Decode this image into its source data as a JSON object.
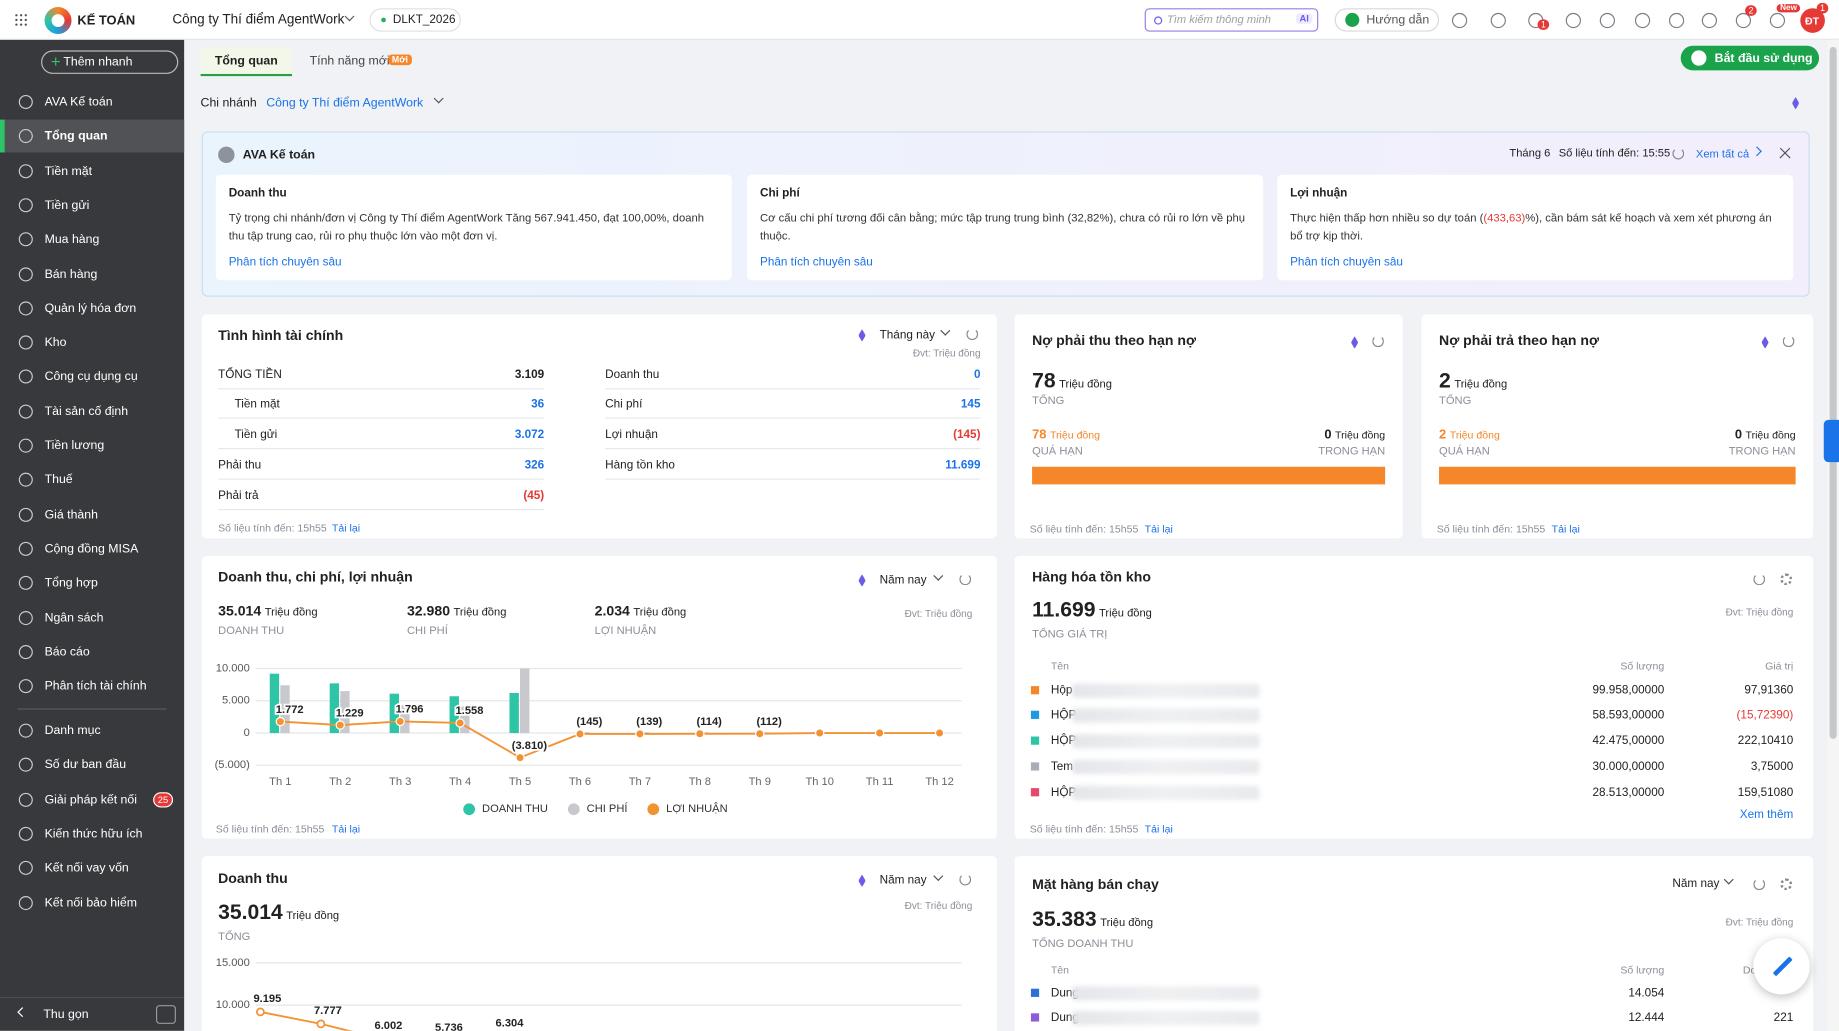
{
  "topbar": {
    "app_name": "KẾ TOÁN",
    "company": "Công ty Thí điểm AgentWork",
    "dataset": "DLKT_2026",
    "search_placeholder": "Tìm kiếm thông minh",
    "search_tag": "AI",
    "guide": "Hướng dẫn",
    "chat_badge": "1",
    "gift_badge": "2",
    "mail_badge": "New",
    "avatar": "ĐT",
    "avatar_badge": "1"
  },
  "sidebar": {
    "quick_add": "Thêm nhanh",
    "menu": [
      [
        {
          "label": "AVA Kế toán"
        },
        {
          "label": "Tổng quan",
          "active": true
        },
        {
          "label": "Tiền mặt"
        },
        {
          "label": "Tiền gửi"
        },
        {
          "label": "Mua hàng"
        },
        {
          "label": "Bán hàng"
        },
        {
          "label": "Quản lý hóa đơn"
        },
        {
          "label": "Kho"
        },
        {
          "label": "Công cụ dụng cụ"
        },
        {
          "label": "Tài sản cố định"
        },
        {
          "label": "Tiền lương"
        },
        {
          "label": "Thuế"
        },
        {
          "label": "Giá thành"
        },
        {
          "label": "Cộng đồng MISA"
        },
        {
          "label": "Tổng hợp"
        },
        {
          "label": "Ngân sách"
        },
        {
          "label": "Báo cáo"
        },
        {
          "label": "Phân tích tài chính"
        }
      ],
      [
        {
          "label": "Danh mục"
        },
        {
          "label": "Số dư ban đầu"
        },
        {
          "label": "Giải pháp kết nối",
          "badge": "25"
        },
        {
          "label": "Kiến thức hữu ích"
        },
        {
          "label": "Kết nối vay vốn"
        },
        {
          "label": "Kết nối bảo hiểm"
        }
      ]
    ],
    "collapse": "Thu gọn"
  },
  "tabs": [
    {
      "label": "Tổng quan",
      "active": true
    },
    {
      "label": "Tính năng mới",
      "tag": "Mới"
    }
  ],
  "start_button": "Bắt đầu sử dụng",
  "branch": {
    "label": "Chi nhánh",
    "value": "Công ty Thí điểm AgentWork"
  },
  "ava": {
    "title": "AVA Kế toán",
    "period": "Tháng 6",
    "updated": "Số liệu tính đến: 15:55",
    "see_all": "Xem tất cả",
    "cards": [
      {
        "title": "Doanh thu",
        "text": "Tỷ trọng chi nhánh/đơn vị Công ty Thí điểm AgentWork Tăng 567.941.450, đạt 100,00%, doanh thu tập trung cao, rủi ro phụ thuộc lớn vào một đơn vị.",
        "link": "Phân tích chuyên sâu"
      },
      {
        "title": "Chi phí",
        "text": "Cơ cấu chi phí tương đối cân bằng; mức tập trung trung bình (32,82%), chưa có rủi ro lớn về phụ thuộc.",
        "link": "Phân tích chuyên sâu"
      },
      {
        "title": "Lợi nhuận",
        "text": "Thực hiện thấp hơn nhiều so dự toán (",
        "highlight": "(433,63)",
        "text_after": "%), cần bám sát kế hoạch và xem xét phương án bổ trợ kịp thời.",
        "link": "Phân tích chuyên sâu"
      }
    ]
  },
  "finance": {
    "title": "Tình hình tài chính",
    "period": "Tháng này",
    "unit": "Đvt: Triệu đồng",
    "left": [
      {
        "label": "TỔNG TIỀN",
        "value": "3.109",
        "color": "#212121"
      },
      {
        "label": "Tiền mặt",
        "value": "36",
        "color": "#1a73e8",
        "indent": true
      },
      {
        "label": "Tiền gửi",
        "value": "3.072",
        "color": "#1a73e8",
        "indent": true
      },
      {
        "label": "Phải thu",
        "value": "326",
        "color": "#1a73e8"
      },
      {
        "label": "Phải trả",
        "value": "(45)",
        "color": "#e53935"
      }
    ],
    "right": [
      {
        "label": "Doanh thu",
        "value": "0",
        "color": "#1a73e8"
      },
      {
        "label": "Chi phí",
        "value": "145",
        "color": "#1a73e8"
      },
      {
        "label": "Lợi nhuận",
        "value": "(145)",
        "color": "#e53935"
      },
      {
        "label": "Hàng tồn kho",
        "value": "11.699",
        "color": "#1a73e8"
      }
    ],
    "updated": "Số liệu tính đến: 15h55",
    "reload": "Tải lại"
  },
  "receivable": {
    "title": "Nợ phải thu theo hạn nợ",
    "total": 78,
    "unit": "Triệu đồng",
    "total_label": "TỔNG",
    "overdue": 78,
    "overdue_label": "QUÁ HẠN",
    "in_term": 0,
    "in_term_label": "TRONG HẠN",
    "color": "#f5862a",
    "updated": "Số liệu tính đến: 15h55",
    "reload": "Tải lại"
  },
  "payable": {
    "title": "Nợ phải trả theo hạn nợ",
    "total": 2,
    "unit": "Triệu đồng",
    "total_label": "TỔNG",
    "overdue": 2,
    "overdue_label": "QUÁ HẠN",
    "in_term": 0,
    "in_term_label": "TRONG HẠN",
    "color": "#f5862a",
    "updated": "Số liệu tính đến: 15h55",
    "reload": "Tải lại"
  },
  "pnl_chart": {
    "type": "bar-line",
    "title": "Doanh thu, chi phí, lợi nhuận",
    "period": "Năm nay",
    "unit": "Đvt: Triệu đồng",
    "summary": [
      {
        "value": "35.014",
        "unit": "Triệu đồng",
        "label": "DOANH THU"
      },
      {
        "value": "32.980",
        "unit": "Triệu đồng",
        "label": "CHI PHÍ"
      },
      {
        "value": "2.034",
        "unit": "Triệu đồng",
        "label": "LỢI NHUẬN"
      }
    ],
    "categories": [
      "Th 1",
      "Th 2",
      "Th 3",
      "Th 4",
      "Th 5",
      "Th 6",
      "Th 7",
      "Th 8",
      "Th 9",
      "Th 10",
      "Th 11",
      "Th 12"
    ],
    "ylim": [
      -5000,
      10000
    ],
    "yticks": [
      {
        "value": 10000,
        "label": "10.000"
      },
      {
        "value": 5000,
        "label": "5.000"
      },
      0,
      {
        "value": -5000,
        "label": "(5.000)"
      }
    ],
    "grid": true,
    "series": [
      {
        "name": "DOANH THU",
        "type": "bar",
        "color": "#2ec4a6",
        "values": [
          9200,
          7700,
          6100,
          5700,
          6200,
          0,
          0,
          0,
          0,
          0,
          0,
          0
        ]
      },
      {
        "name": "CHI PHÍ",
        "type": "bar",
        "color": "#c9c9cd",
        "values": [
          7400,
          6500,
          4300,
          4100,
          10000,
          145,
          139,
          114,
          112,
          0,
          0,
          0
        ]
      },
      {
        "name": "LỢI NHUẬN",
        "type": "line",
        "color": "#f39233",
        "values": [
          1772,
          1229,
          1796,
          1558,
          -3810,
          -145,
          -139,
          -114,
          -112,
          0,
          0,
          0
        ],
        "value_labels": [
          "1.772",
          "1.229",
          "1.796",
          "1.558",
          "(3.810)",
          "(145)",
          "(139)",
          "(114)",
          "(112)",
          null,
          null,
          null
        ]
      }
    ],
    "updated": "Số liệu tính đến: 15h55",
    "reload": "Tải lại"
  },
  "inventory": {
    "title": "Hàng hóa tồn kho",
    "total": "11.699",
    "unit": "Triệu đồng",
    "total_label": "TỔNG GIÁ TRỊ",
    "unit_note": "Đvt: Triệu đồng",
    "columns": [
      "Tên",
      "Số lượng",
      "Giá trị"
    ],
    "rows": [
      {
        "color": "#f5862a",
        "name": "Hộp",
        "quantity": "99.958,00000",
        "value": "97,91360",
        "value_color": "#212121"
      },
      {
        "color": "#1e9be0",
        "name": "HỘP",
        "quantity": "58.593,00000",
        "value": "(15,72390)",
        "value_color": "#e53935"
      },
      {
        "color": "#2ec4a6",
        "name": "HỘP",
        "quantity": "42.475,00000",
        "value": "222,10410",
        "value_color": "#212121"
      },
      {
        "color": "#a9adb8",
        "name": "Tem",
        "quantity": "30.000,00000",
        "value": "3,75000",
        "value_color": "#212121"
      },
      {
        "color": "#e5486a",
        "name": "HỘP",
        "quantity": "28.513,00000",
        "value": "159,51080",
        "value_color": "#212121"
      }
    ],
    "more": "Xem thêm",
    "updated": "Số liệu tính đến: 15h55",
    "reload": "Tải lại"
  },
  "revenue_chart": {
    "type": "line",
    "title": "Doanh thu",
    "period": "Năm nay",
    "unit_note": "Đvt: Triệu đồng",
    "total": "35.014",
    "unit": "Triệu đồng",
    "total_label": "TỔNG",
    "ylim": [
      0,
      15000
    ],
    "yticks": [
      {
        "value": 15000,
        "label": "15.000"
      },
      {
        "value": 10000,
        "label": "10.000"
      }
    ],
    "grid": true,
    "series": [
      {
        "color": "#f39233",
        "values": [
          9195,
          7777,
          6002,
          5736,
          6304
        ],
        "value_labels": [
          "9.195",
          "7.777",
          "6.002",
          "5.736",
          "6.304"
        ]
      }
    ]
  },
  "best_sellers": {
    "title": "Mặt hàng bán chạy",
    "period": "Năm nay",
    "unit_note": "Đvt: Triệu đồng",
    "total": "35.383",
    "unit": "Triệu đồng",
    "total_label": "TỔNG DOANH THU",
    "columns": [
      "Tên",
      "Số lượng",
      "Doanh thu"
    ],
    "rows": [
      {
        "color": "#2f6fd6",
        "name": "Dung",
        "quantity": "14.054"
      },
      {
        "color": "#8e5bd6",
        "name": "Dung",
        "quantity": "12.444",
        "value": "221"
      }
    ]
  }
}
